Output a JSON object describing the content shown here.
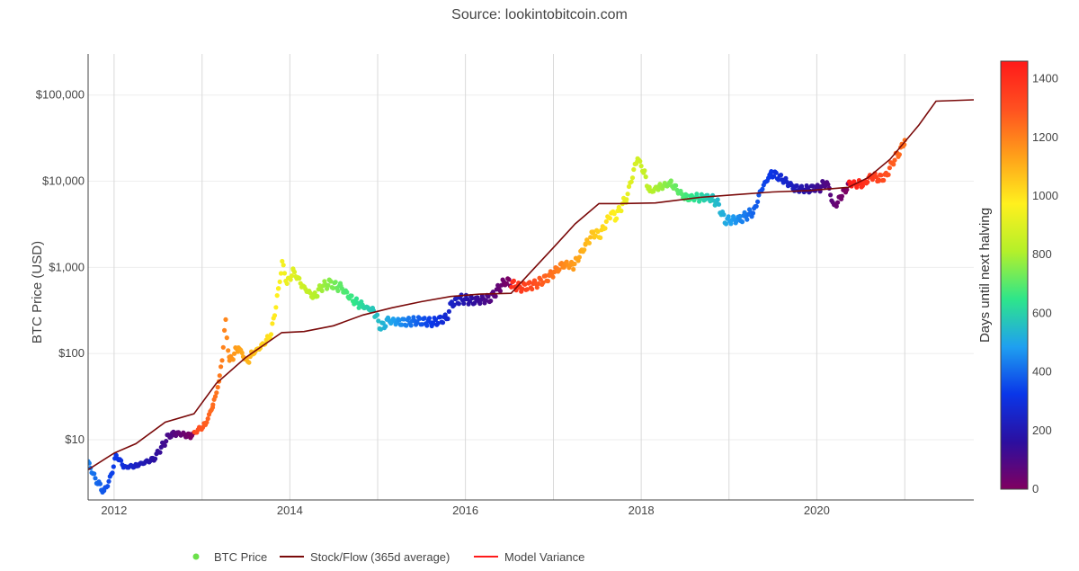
{
  "source_label": "Source: lookintobitcoin.com",
  "chart_data": {
    "type": "scatter",
    "title": "",
    "ylabel": "BTC Price (USD)",
    "xlabel": "",
    "yscale": "log",
    "xlim": [
      "2011-09-15",
      "2021-10-15"
    ],
    "ylim": [
      2,
      300000
    ],
    "x_ticks": [
      "2012",
      "2014",
      "2016",
      "2018",
      "2020"
    ],
    "y_ticks": [
      {
        "value": 10,
        "label": "$10"
      },
      {
        "value": 100,
        "label": "$100"
      },
      {
        "value": 1000,
        "label": "$1,000"
      },
      {
        "value": 10000,
        "label": "$10,000"
      },
      {
        "value": 100000,
        "label": "$100,000"
      }
    ],
    "grid": true,
    "colorbar": {
      "title": "Days until next halving",
      "min": 0,
      "max": 1460,
      "ticks": [
        0,
        200,
        400,
        600,
        800,
        1000,
        1200,
        1400
      ],
      "colorscale": [
        "#800060",
        "#2b0fa0",
        "#0a36e8",
        "#1fa0f0",
        "#2ee68a",
        "#b4f02a",
        "#fff01e",
        "#ffa01a",
        "#ff5020",
        "#ff1a1a"
      ]
    },
    "halvings": [
      "2012-11-28",
      "2016-07-09",
      "2020-05-11",
      "2024-05-10"
    ],
    "legend_position": "bottom-center",
    "series": [
      {
        "name": "BTC Price",
        "type": "scatter",
        "x": [
          "2011-09-15",
          "2011-10-15",
          "2011-11-20",
          "2011-12-15",
          "2012-01-10",
          "2012-02-15",
          "2012-04-01",
          "2012-06-15",
          "2012-08-15",
          "2012-09-15",
          "2012-10-15",
          "2012-11-15",
          "2012-12-15",
          "2013-01-15",
          "2013-02-15",
          "2013-03-15",
          "2013-04-09",
          "2013-04-25",
          "2013-06-01",
          "2013-07-05",
          "2013-08-01",
          "2013-09-15",
          "2013-10-15",
          "2013-11-15",
          "2013-11-30",
          "2013-12-20",
          "2014-01-15",
          "2014-02-25",
          "2014-04-10",
          "2014-05-15",
          "2014-06-15",
          "2014-08-01",
          "2014-09-20",
          "2014-11-01",
          "2014-12-15",
          "2015-01-14",
          "2015-02-15",
          "2015-04-15",
          "2015-06-15",
          "2015-08-20",
          "2015-10-15",
          "2015-11-05",
          "2015-12-15",
          "2016-02-15",
          "2016-04-15",
          "2016-06-15",
          "2016-08-15",
          "2016-10-15",
          "2016-12-15",
          "2017-01-05",
          "2017-02-15",
          "2017-03-25",
          "2017-05-15",
          "2017-06-15",
          "2017-07-15",
          "2017-09-01",
          "2017-09-15",
          "2017-11-01",
          "2017-12-17",
          "2018-01-15",
          "2018-02-06",
          "2018-03-15",
          "2018-05-05",
          "2018-06-30",
          "2018-08-15",
          "2018-10-15",
          "2018-11-15",
          "2018-12-15",
          "2019-02-15",
          "2019-04-15",
          "2019-05-15",
          "2019-06-26",
          "2019-08-15",
          "2019-09-30",
          "2019-11-15",
          "2020-01-15",
          "2020-02-12",
          "2020-03-13",
          "2020-04-15",
          "2020-05-15",
          "2020-06-15",
          "2020-07-15",
          "2020-08-15",
          "2020-09-15",
          "2020-10-15",
          "2020-11-15",
          "2020-12-15",
          "2021-01-01"
        ],
        "y": [
          5.5,
          3.5,
          2.5,
          3.5,
          6.5,
          4.8,
          5,
          6,
          11,
          12,
          11.5,
          11,
          13,
          15,
          25,
          50,
          230,
          80,
          120,
          80,
          100,
          130,
          170,
          550,
          1150,
          650,
          900,
          600,
          450,
          600,
          650,
          580,
          420,
          350,
          320,
          200,
          240,
          230,
          240,
          230,
          260,
          380,
          430,
          410,
          440,
          700,
          580,
          630,
          780,
          900,
          1100,
          1050,
          1800,
          2500,
          2400,
          4500,
          3800,
          6500,
          19000,
          12000,
          7500,
          8500,
          9500,
          6500,
          6400,
          6500,
          5500,
          3500,
          3600,
          4500,
          8000,
          12500,
          10500,
          8300,
          8000,
          8500,
          10000,
          5000,
          6900,
          9300,
          9400,
          9200,
          11700,
          10700,
          11400,
          17500,
          23000,
          30000
        ]
      },
      {
        "name": "Stock/Flow (365d average)",
        "type": "line",
        "color": "#7a0a0a",
        "x": [
          "2011-09-15",
          "2012-01-01",
          "2012-04-01",
          "2012-08-01",
          "2012-11-28",
          "2013-03-01",
          "2013-07-01",
          "2013-11-28",
          "2014-03-01",
          "2014-07-01",
          "2014-11-01",
          "2015-03-01",
          "2015-07-01",
          "2015-11-01",
          "2016-03-01",
          "2016-07-09",
          "2016-10-01",
          "2017-01-01",
          "2017-04-01",
          "2017-07-09",
          "2017-10-01",
          "2018-03-01",
          "2018-09-01",
          "2019-02-01",
          "2019-07-01",
          "2019-12-01",
          "2020-05-11",
          "2020-08-01",
          "2020-11-01",
          "2021-03-01",
          "2021-05-11",
          "2021-10-15"
        ],
        "y": [
          4.5,
          7,
          9,
          16,
          20,
          45,
          90,
          175,
          180,
          210,
          280,
          340,
          400,
          460,
          490,
          500,
          900,
          1700,
          3200,
          5500,
          5500,
          5600,
          6500,
          7000,
          7500,
          7800,
          8500,
          11000,
          18000,
          45000,
          85000,
          88000
        ]
      },
      {
        "name": "Model Variance",
        "type": "line",
        "color": "#ff1a1a"
      }
    ]
  }
}
